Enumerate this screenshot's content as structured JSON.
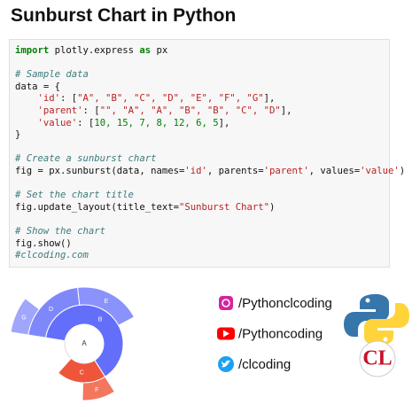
{
  "header": {
    "title": "Sunburst Chart in Python"
  },
  "code": {
    "blocks": [
      [
        [
          {
            "text": "import",
            "kind": "kw"
          },
          {
            "text": " plotly.express ",
            "kind": "p"
          },
          {
            "text": "as",
            "kind": "kw"
          },
          {
            "text": " px",
            "kind": "p"
          }
        ]
      ],
      [
        [
          {
            "text": "# Sample data",
            "kind": "cm"
          }
        ],
        [
          {
            "text": "data = {",
            "kind": "p"
          }
        ],
        [
          {
            "text": "    ",
            "kind": "p"
          },
          {
            "text": "'id'",
            "kind": "st"
          },
          {
            "text": ": [",
            "kind": "p"
          },
          {
            "text": "\"A\", \"B\", \"C\", \"D\", \"E\", \"F\", \"G\"",
            "kind": "st"
          },
          {
            "text": "],",
            "kind": "p"
          }
        ],
        [
          {
            "text": "    ",
            "kind": "p"
          },
          {
            "text": "'parent'",
            "kind": "st"
          },
          {
            "text": ": [",
            "kind": "p"
          },
          {
            "text": "\"\", \"A\", \"A\", \"B\", \"B\", \"C\", \"D\"",
            "kind": "st"
          },
          {
            "text": "],",
            "kind": "p"
          }
        ],
        [
          {
            "text": "    ",
            "kind": "p"
          },
          {
            "text": "'value'",
            "kind": "st"
          },
          {
            "text": ": [",
            "kind": "p"
          },
          {
            "text": "10, 15, 7, 8, 12, 6, 5",
            "kind": "n"
          },
          {
            "text": "],",
            "kind": "p"
          }
        ],
        [
          {
            "text": "}",
            "kind": "p"
          }
        ]
      ],
      [
        [
          {
            "text": "# Create a sunburst chart",
            "kind": "cm"
          }
        ],
        [
          {
            "text": "fig = px.sunburst(data, names=",
            "kind": "p"
          },
          {
            "text": "'id'",
            "kind": "st"
          },
          {
            "text": ", parents=",
            "kind": "p"
          },
          {
            "text": "'parent'",
            "kind": "st"
          },
          {
            "text": ", values=",
            "kind": "p"
          },
          {
            "text": "'value'",
            "kind": "st"
          },
          {
            "text": ")",
            "kind": "p"
          }
        ]
      ],
      [
        [
          {
            "text": "# Set the chart title",
            "kind": "cm"
          }
        ],
        [
          {
            "text": "fig.update_layout(title_text=",
            "kind": "p"
          },
          {
            "text": "\"Sunburst Chart\"",
            "kind": "st"
          },
          {
            "text": ")",
            "kind": "p"
          }
        ]
      ],
      [
        [
          {
            "text": "# Show the chart",
            "kind": "cm"
          }
        ],
        [
          {
            "text": "fig.show()",
            "kind": "p"
          }
        ],
        [
          {
            "text": "#clcoding.com",
            "kind": "cm"
          }
        ]
      ]
    ]
  },
  "sunburst": {
    "labels": [
      "A",
      "B",
      "C",
      "D",
      "E",
      "F",
      "G"
    ],
    "parents": [
      null,
      0,
      0,
      1,
      1,
      2,
      3
    ],
    "values": [
      10,
      15,
      7,
      8,
      12,
      6,
      5
    ],
    "colors": [
      "#ffffff",
      "#636efa",
      "#ef553b",
      "#7f88fb",
      "#8a92fb",
      "#f3775f",
      "#a0a6fc"
    ]
  },
  "social": [
    {
      "icon": "instagram",
      "handle": "/Pythonclcoding"
    },
    {
      "icon": "youtube",
      "handle": "/Pythoncoding"
    },
    {
      "icon": "twitter",
      "handle": "/clcoding"
    }
  ],
  "logo": {
    "text": "CL"
  }
}
